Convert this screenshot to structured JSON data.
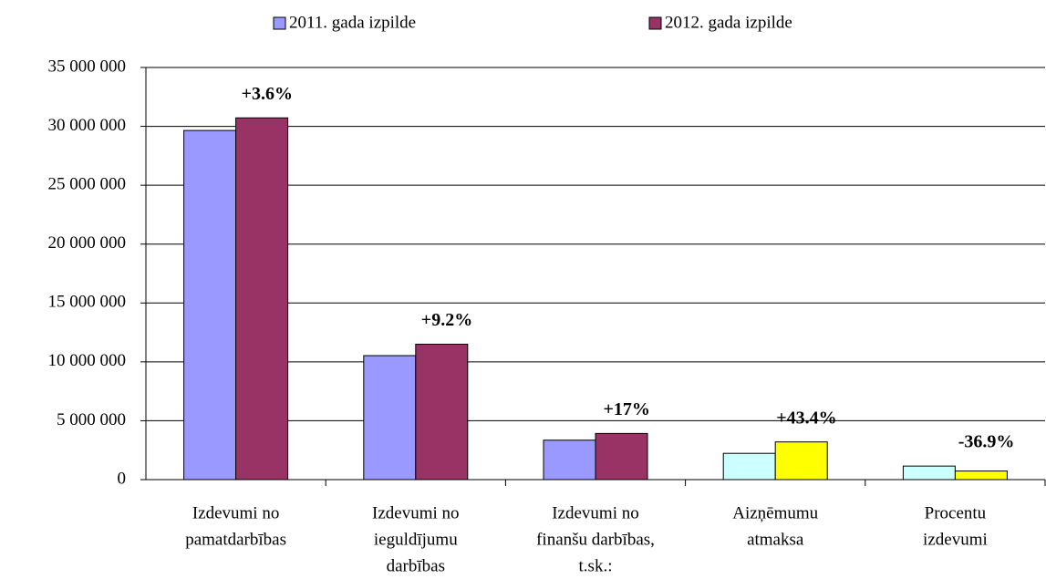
{
  "chart_data": {
    "type": "bar",
    "categories": [
      [
        "Izdevumi no",
        "pamatdarbības"
      ],
      [
        "Izdevumi no",
        "ieguldījumu",
        "darbības"
      ],
      [
        "Izdevumi no",
        "finanšu darbības,",
        "t.sk.:"
      ],
      [
        "Aizņēmumu",
        "atmaksa"
      ],
      [
        "Procentu",
        "izdevumi"
      ]
    ],
    "series": [
      {
        "name": "2011. gada izpilde",
        "color": "#9999ff",
        "colors": [
          "#9999ff",
          "#9999ff",
          "#9999ff",
          "#ccffff",
          "#ccffff"
        ],
        "values": [
          29650000,
          10530000,
          3350000,
          2230000,
          1150000
        ]
      },
      {
        "name": "2012. gada izpilde",
        "color": "#993366",
        "colors": [
          "#993366",
          "#993366",
          "#993366",
          "#ffff00",
          "#ffff00"
        ],
        "values": [
          30720000,
          11500000,
          3920000,
          3200000,
          730000
        ]
      }
    ],
    "annotations": [
      "+3.6%",
      "+9.2%",
      "+17%",
      "+43.4%",
      "-36.9%"
    ],
    "ylim": [
      0,
      35000000
    ],
    "yticks": [
      0,
      {
        "value": 5000000,
        "label": "5 000 000"
      },
      {
        "value": 10000000,
        "label": "10 000 000"
      },
      {
        "value": 15000000,
        "label": "15 000 000"
      },
      {
        "value": 20000000,
        "label": "20 000 000"
      },
      {
        "value": 25000000,
        "label": "25 000 000"
      },
      {
        "value": 30000000,
        "label": "30 000 000"
      },
      {
        "value": 35000000,
        "label": "35 000 000"
      }
    ],
    "grid": true,
    "legend": "top"
  }
}
